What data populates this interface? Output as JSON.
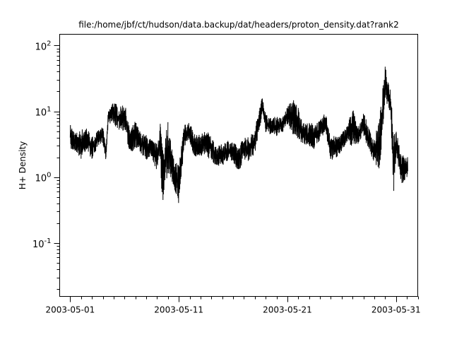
{
  "chart_data": {
    "type": "line",
    "title": "file:/home/jbf/ct/hudson/data.backup/dat/headers/proton_density.dat?rank2",
    "xlabel": "",
    "ylabel": "H+ Density",
    "yscale": "log",
    "ylim": [
      0.0154,
      148
    ],
    "xlim": [
      "2003-04-30 00:45",
      "2003-06-02 00:00"
    ],
    "grid": false,
    "x_tick_labels": [
      "2003-05-01",
      "2003-05-11",
      "2003-05-21",
      "2003-05-31"
    ],
    "y_tick_labels": [
      {
        "base": "10",
        "exp": "2",
        "value": 100
      },
      {
        "base": "10",
        "exp": "1",
        "value": 10
      },
      {
        "base": "10",
        "exp": "0",
        "value": 1
      },
      {
        "base": "10",
        "exp": "-1",
        "value": 0.1
      }
    ],
    "line_color": "#000000",
    "series": [
      {
        "note_columns": [
          "time",
          "low",
          "high"
        ],
        "points": [
          [
            "2003-05-01 00:00",
            2.5,
            6.4
          ],
          [
            "2003-05-01 12:00",
            2.5,
            4.7
          ],
          [
            "2003-05-02 00:00",
            1.85,
            5.3
          ],
          [
            "2003-05-02 12:00",
            2.6,
            5.9
          ],
          [
            "2003-05-03 00:00",
            1.85,
            4.1
          ],
          [
            "2003-05-03 12:00",
            2.7,
            5.0
          ],
          [
            "2003-05-04 00:00",
            3.3,
            5.9
          ],
          [
            "2003-05-04 07:00",
            1.76,
            3.0
          ],
          [
            "2003-05-04 12:00",
            6.7,
            9.9
          ],
          [
            "2003-05-05 00:00",
            6.1,
            15
          ],
          [
            "2003-05-05 12:00",
            5.2,
            11
          ],
          [
            "2003-05-06 00:00",
            5.0,
            14
          ],
          [
            "2003-05-06 12:00",
            2.3,
            5.2
          ],
          [
            "2003-05-07 00:00",
            2.7,
            7.2
          ],
          [
            "2003-05-07 12:00",
            2.3,
            4.7
          ],
          [
            "2003-05-08 00:00",
            1.72,
            4.4
          ],
          [
            "2003-05-08 12:00",
            1.95,
            3.7
          ],
          [
            "2003-05-09 00:00",
            1.2,
            3.2
          ],
          [
            "2003-05-09 07:00",
            2.0,
            7.2
          ],
          [
            "2003-05-09 12:00",
            0.31,
            3.0
          ],
          [
            "2003-05-10 00:00",
            1.19,
            7.2
          ],
          [
            "2003-05-10 12:00",
            0.73,
            1.95
          ],
          [
            "2003-05-11 00:00",
            0.37,
            1.6
          ],
          [
            "2003-05-11 12:00",
            2.9,
            6.9
          ],
          [
            "2003-05-12 00:00",
            3.2,
            6.9
          ],
          [
            "2003-05-12 12:00",
            1.95,
            4.4
          ],
          [
            "2003-05-13 00:00",
            2.1,
            4.4
          ],
          [
            "2003-05-13 12:00",
            2.1,
            5.3
          ],
          [
            "2003-05-14 00:00",
            1.76,
            4.2
          ],
          [
            "2003-05-14 12:00",
            1.45,
            2.9
          ],
          [
            "2003-05-15 00:00",
            1.5,
            3.2
          ],
          [
            "2003-05-15 12:00",
            1.76,
            3.7
          ],
          [
            "2003-05-16 00:00",
            1.64,
            3.4
          ],
          [
            "2003-05-16 12:00",
            1.2,
            2.9
          ],
          [
            "2003-05-17 00:00",
            1.76,
            4.2
          ],
          [
            "2003-05-17 12:00",
            1.7,
            4.0
          ],
          [
            "2003-05-18 00:00",
            2.3,
            5.6
          ],
          [
            "2003-05-18 12:00",
            6.1,
            12.7
          ],
          [
            "2003-05-18 17:00",
            9.2,
            18
          ],
          [
            "2003-05-19 00:00",
            4.7,
            9.2
          ],
          [
            "2003-05-19 12:00",
            4.4,
            7.8
          ],
          [
            "2003-05-20 00:00",
            4.1,
            8.5
          ],
          [
            "2003-05-20 12:00",
            4.7,
            7.8
          ],
          [
            "2003-05-21 00:00",
            6.1,
            11.8
          ],
          [
            "2003-05-21 12:00",
            4.4,
            15.8
          ],
          [
            "2003-05-22 00:00",
            3.6,
            11.8
          ],
          [
            "2003-05-22 12:00",
            3.2,
            6.7
          ],
          [
            "2003-05-23 00:00",
            2.9,
            6.7
          ],
          [
            "2003-05-23 12:00",
            2.6,
            6.7
          ],
          [
            "2003-05-24 00:00",
            3.7,
            7.2
          ],
          [
            "2003-05-24 12:00",
            4.7,
            9.7
          ],
          [
            "2003-05-25 00:00",
            1.76,
            4.4
          ],
          [
            "2003-05-25 12:00",
            1.95,
            4.1
          ],
          [
            "2003-05-26 00:00",
            2.5,
            4.7
          ],
          [
            "2003-05-26 12:00",
            3.2,
            6.1
          ],
          [
            "2003-05-27 00:00",
            2.9,
            11.8
          ],
          [
            "2003-05-27 12:00",
            3.2,
            5.6
          ],
          [
            "2003-05-28 00:00",
            4.4,
            9.9
          ],
          [
            "2003-05-28 12:00",
            2.5,
            5.6
          ],
          [
            "2003-05-29 00:00",
            1.64,
            3.7
          ],
          [
            "2003-05-29 12:00",
            1.28,
            8.5
          ],
          [
            "2003-05-30 00:00",
            16,
            48
          ],
          [
            "2003-05-30 12:00",
            8.5,
            21
          ],
          [
            "2003-05-30 19:00",
            0.42,
            6.0
          ],
          [
            "2003-05-31 00:00",
            1.95,
            5.6
          ],
          [
            "2003-05-31 12:00",
            0.78,
            2.1
          ],
          [
            "2003-06-01 00:00",
            0.93,
            2.3
          ],
          [
            "2003-06-01 02:00",
            1.0,
            2.0
          ]
        ]
      }
    ]
  }
}
